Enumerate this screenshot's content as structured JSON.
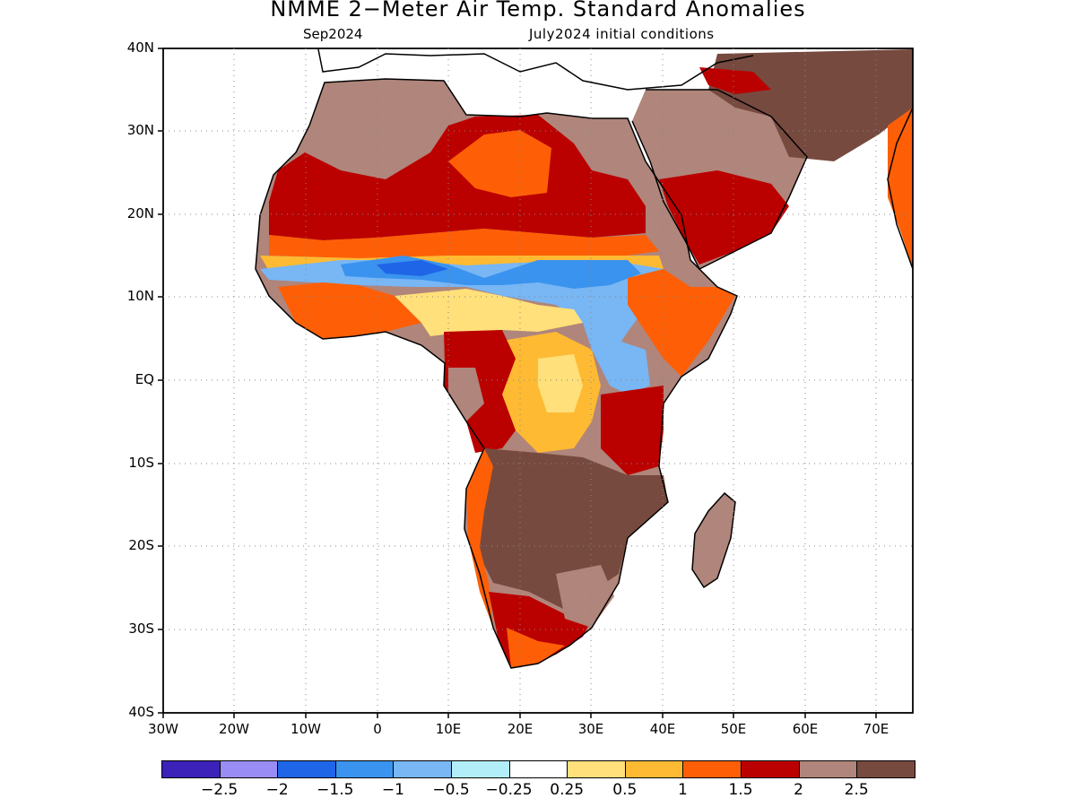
{
  "header": {
    "title": "NMME 2−Meter Air Temp. Standard Anomalies",
    "valid_month": "Sep2024",
    "initial_conditions": "July2024 initial conditions"
  },
  "axes": {
    "lat_labels": [
      "40N",
      "30N",
      "20N",
      "10N",
      "EQ",
      "10S",
      "20S",
      "30S",
      "40S"
    ],
    "lon_labels": [
      "30W",
      "20W",
      "10W",
      "0",
      "10E",
      "20E",
      "30E",
      "40E",
      "50E",
      "60E",
      "70E"
    ]
  },
  "legend": {
    "labels": [
      "−2.5",
      "−2",
      "−1.5",
      "−1",
      "−0.5",
      "−0.25",
      "0.25",
      "0.5",
      "1",
      "1.5",
      "2",
      "2.5"
    ],
    "colors": [
      "#3c22b8",
      "#9a8cf5",
      "#1f65e8",
      "#3a93ee",
      "#78b6f4",
      "#b2eef8",
      "#ffffff",
      "#ffe07a",
      "#ffba33",
      "#fe5f06",
      "#bb0000",
      "#b0857b",
      "#774a3f"
    ]
  },
  "map_colors": {
    "land": "#d9c9c4",
    "neutral_land": "#ffffff",
    "ocean": "#ffffff"
  }
}
